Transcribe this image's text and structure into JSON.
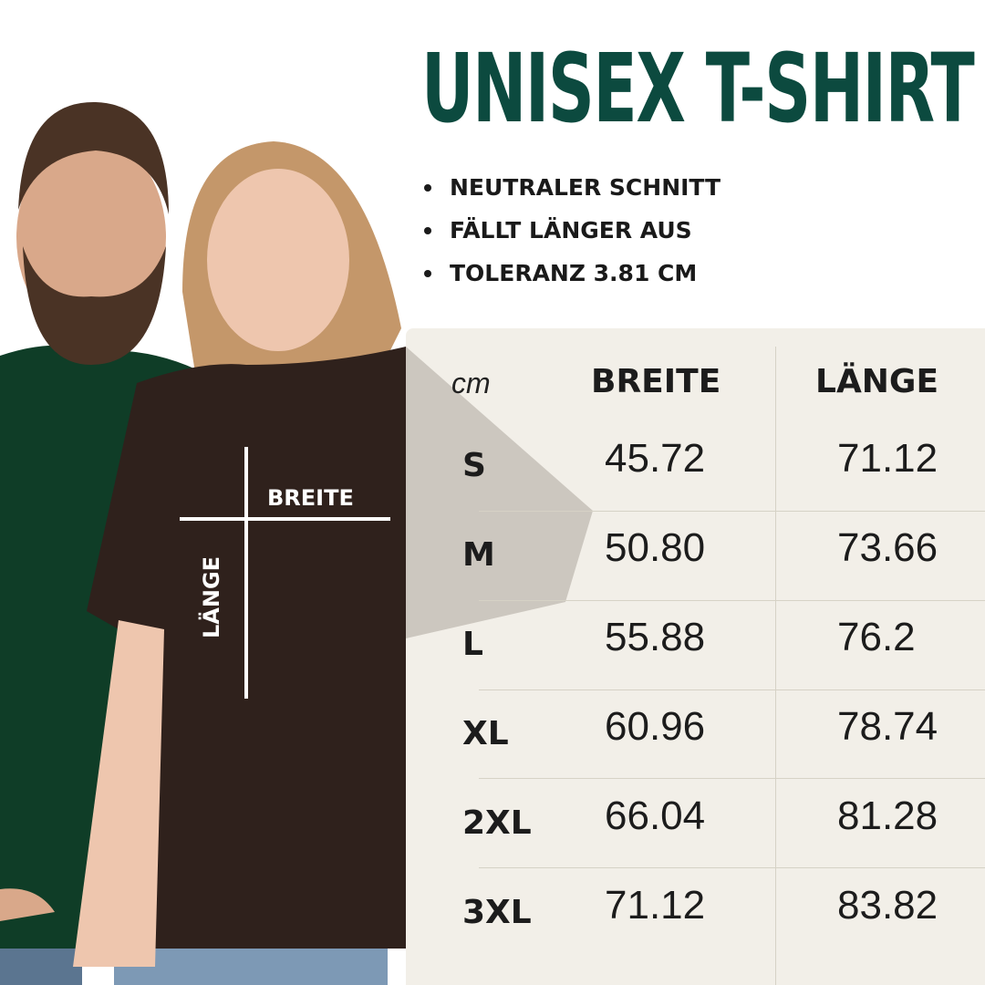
{
  "title": "UNISEX T-SHIRT",
  "features": [
    "NEUTRALER SCHNITT",
    "FÄLLT LÄNGER AUS",
    "TOLERANZ 3.81 CM"
  ],
  "diagram": {
    "width_label": "BREITE",
    "length_label": "LÄNGE"
  },
  "table": {
    "unit": "cm",
    "headers": [
      "BREITE",
      "LÄNGE"
    ],
    "rows": [
      {
        "size": "S",
        "breite": "45.72",
        "laenge": "71.12"
      },
      {
        "size": "M",
        "breite": "50.80",
        "laenge": "73.66"
      },
      {
        "size": "L",
        "breite": "55.88",
        "laenge": "76.2"
      },
      {
        "size": "XL",
        "breite": "60.96",
        "laenge": "78.74"
      },
      {
        "size": "2XL",
        "breite": "66.04",
        "laenge": "81.28"
      },
      {
        "size": "3XL",
        "breite": "71.12",
        "laenge": "83.82"
      }
    ]
  },
  "colors": {
    "title": "#0c4a3f",
    "panel": "#efece3",
    "green_shirt": "#0f3d27",
    "brown_shirt": "#2f211c"
  }
}
